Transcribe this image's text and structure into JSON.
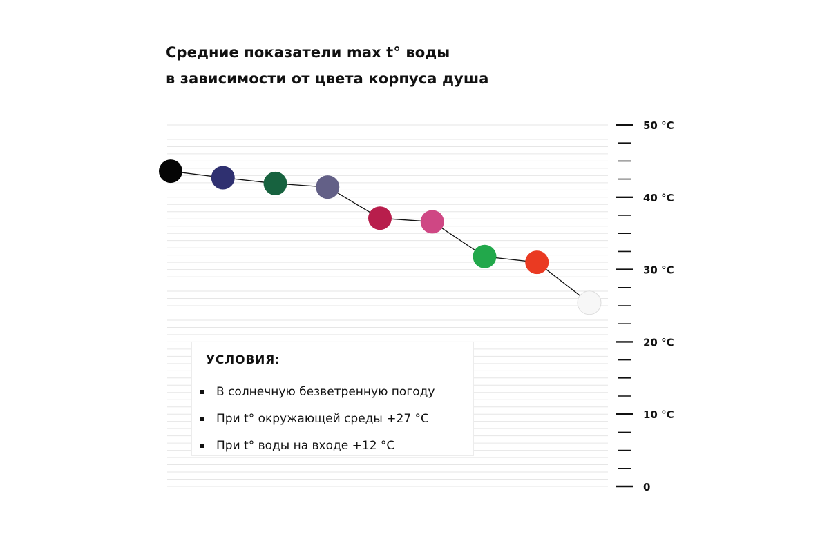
{
  "title": {
    "line1": "Средние показатели max t° воды",
    "line2": "в зависимости от цвета корпуса душа"
  },
  "chart_data": {
    "type": "line",
    "title": "Средние показатели max t° воды в зависимости от цвета корпуса душа",
    "xlabel": "",
    "ylabel": "",
    "ylim": [
      0,
      50
    ],
    "grid": true,
    "y_axis_side": "right",
    "y_tick_labels": [
      "0",
      "10 °C",
      "20 °C",
      "30 °C",
      "40 °C",
      "50 °C"
    ],
    "y_tick_values": [
      0,
      10,
      20,
      30,
      40,
      50
    ],
    "series": [
      {
        "points": [
          {
            "x": 1,
            "y": 43.6,
            "color": "#050505"
          },
          {
            "x": 2,
            "y": 42.7,
            "color": "#2f3070"
          },
          {
            "x": 3,
            "y": 41.9,
            "color": "#17623f"
          },
          {
            "x": 4,
            "y": 41.4,
            "color": "#636087"
          },
          {
            "x": 5,
            "y": 37.1,
            "color": "#b81e4c"
          },
          {
            "x": 6,
            "y": 36.6,
            "color": "#cf4784"
          },
          {
            "x": 7,
            "y": 31.8,
            "color": "#22a84b"
          },
          {
            "x": 8,
            "y": 31.0,
            "color": "#ea3a22"
          },
          {
            "x": 9,
            "y": 25.4,
            "color": "#f7f7f7"
          }
        ]
      }
    ]
  },
  "conditions": {
    "title": "УСЛОВИЯ:",
    "items": [
      "В солнечную безветренную погоду",
      "При t° окружающей среды +27 °C",
      "При t° воды на входе +12 °C"
    ]
  }
}
